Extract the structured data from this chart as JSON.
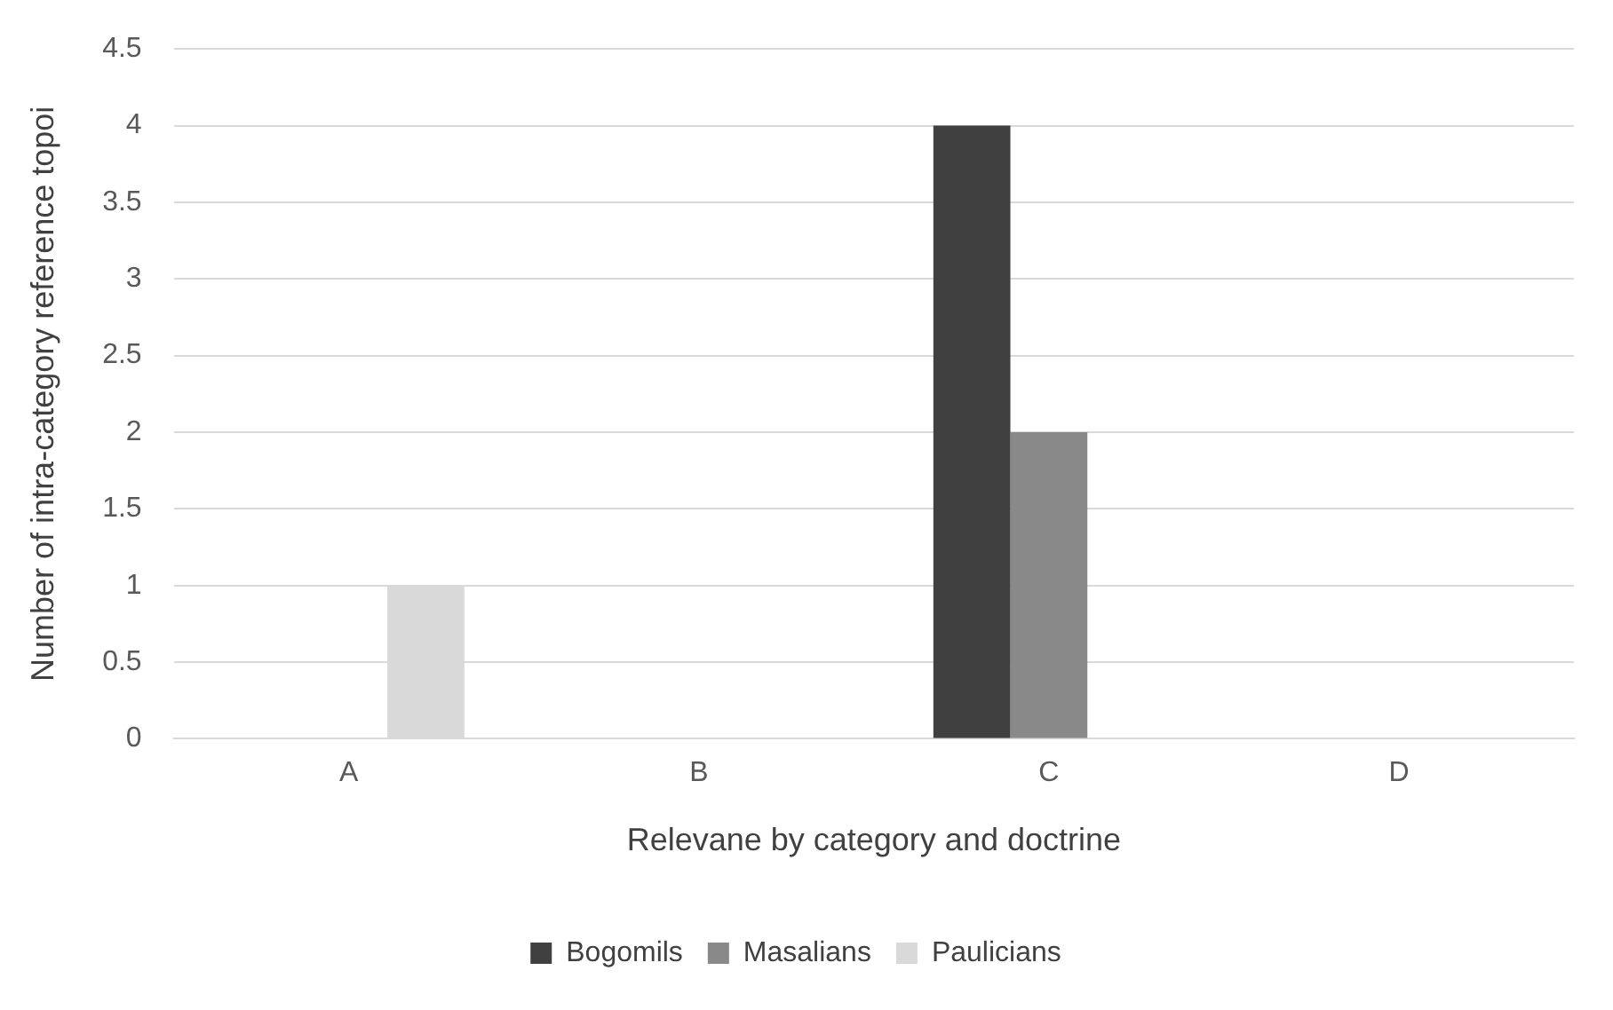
{
  "chart_data": {
    "type": "bar",
    "xlabel": "Relevane by category and doctrine",
    "ylabel": "Number of intra-category reference topoi",
    "categories": [
      "A",
      "B",
      "C",
      "D"
    ],
    "series": [
      {
        "name": "Bogomils",
        "color": "#404040",
        "values": [
          0,
          0,
          4,
          0
        ]
      },
      {
        "name": "Masalians",
        "color": "#898989",
        "values": [
          0,
          0,
          2,
          0
        ]
      },
      {
        "name": "Paulicians",
        "color": "#d9d9d9",
        "values": [
          1,
          0,
          0,
          0
        ]
      }
    ],
    "ylim": [
      0,
      4.5
    ],
    "yticks": [
      0,
      0.5,
      1,
      1.5,
      2,
      2.5,
      3,
      3.5,
      4,
      4.5
    ],
    "grid": "y",
    "legend": "bottom"
  }
}
